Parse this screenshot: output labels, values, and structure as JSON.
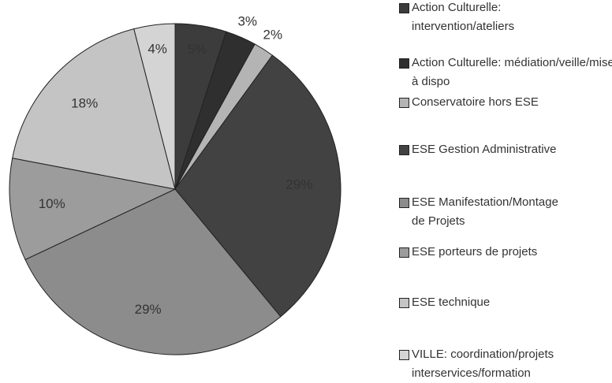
{
  "chart_data": {
    "type": "pie",
    "categories": [
      "Action Culturelle: intervention/ateliers",
      "Action Culturelle: médiation/veille/mise à dispo",
      "Conservatoire hors ESE",
      "ESE Gestion Administrative",
      "ESE Manifestation/Montage de Projets",
      "ESE porteurs de projets",
      "ESE technique",
      "VILLE: coordination/projets interservices/formation"
    ],
    "values": [
      5,
      3,
      2,
      29,
      29,
      10,
      18,
      4
    ],
    "value_labels": [
      "5%",
      "3%",
      "2%",
      "29%",
      "29%",
      "10%",
      "18%",
      "4%"
    ],
    "colors": [
      "#3c3c3c",
      "#2f2f2f",
      "#b4b4b4",
      "#424242",
      "#8c8c8c",
      "#9c9c9c",
      "#c4c4c4",
      "#d4d4d4"
    ],
    "legend": "right"
  }
}
